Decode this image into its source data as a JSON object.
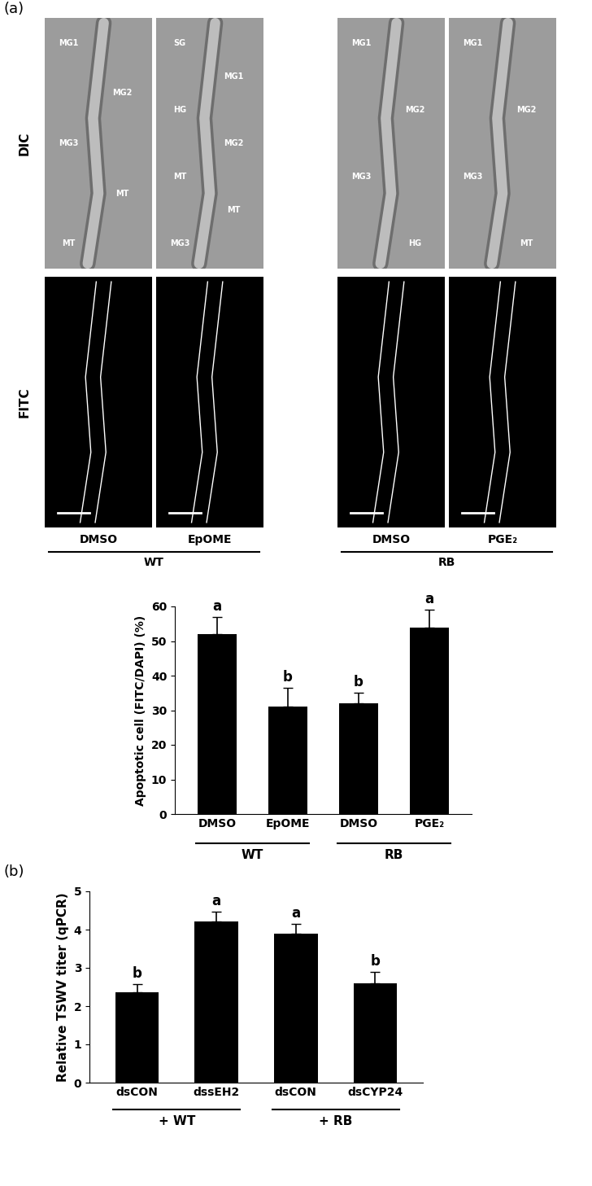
{
  "panel_labels": [
    "(a)",
    "(b)"
  ],
  "images": {
    "rows": [
      "DIC",
      "FITC"
    ],
    "columns": [
      {
        "name": "DMSO",
        "group": "WT",
        "regions": [
          "MG1",
          "MG2",
          "MG3",
          "MT",
          "MT"
        ]
      },
      {
        "name": "EpOME",
        "group": "WT",
        "regions": [
          "SG",
          "MG1",
          "HG",
          "MG2",
          "MT",
          "MT",
          "MG3"
        ]
      },
      {
        "name": "DMSO",
        "group": "RB",
        "regions": [
          "MG1",
          "MG2",
          "MG3",
          "HG"
        ]
      },
      {
        "name": "PGE₂",
        "group": "RB",
        "regions": [
          "MG1",
          "MG2",
          "MG3",
          "MT"
        ]
      }
    ]
  },
  "chart_data": [
    {
      "type": "bar",
      "y_label": "Apoptotic cell (FITC/DAPI) (%)",
      "categories": [
        "DMSO",
        "EpOME",
        "DMSO",
        "PGE₂"
      ],
      "groups": [
        "WT",
        "WT",
        "RB",
        "RB"
      ],
      "values": [
        52,
        31,
        32,
        54
      ],
      "errors": [
        5,
        5.5,
        3,
        5
      ],
      "annotations": [
        "a",
        "b",
        "b",
        "a"
      ],
      "color": "#000000",
      "ylim": [
        0,
        60
      ],
      "yticks": [
        0,
        10,
        20,
        30,
        40,
        50,
        60
      ]
    },
    {
      "type": "bar",
      "y_label": "Relative TSWV titer (qPCR)",
      "categories": [
        "dsCON",
        "dssEH2",
        "dsCON",
        "dsCYP24"
      ],
      "groups": [
        "+ WT",
        "+ WT",
        "+ RB",
        "+ RB"
      ],
      "values": [
        2.37,
        4.22,
        3.9,
        2.6
      ],
      "errors": [
        0.2,
        0.25,
        0.25,
        0.3
      ],
      "annotations": [
        "b",
        "a",
        "a",
        "b"
      ],
      "color": "#000000",
      "ylim": [
        0,
        5
      ],
      "yticks": [
        0,
        1,
        2,
        3,
        4,
        5
      ]
    }
  ]
}
